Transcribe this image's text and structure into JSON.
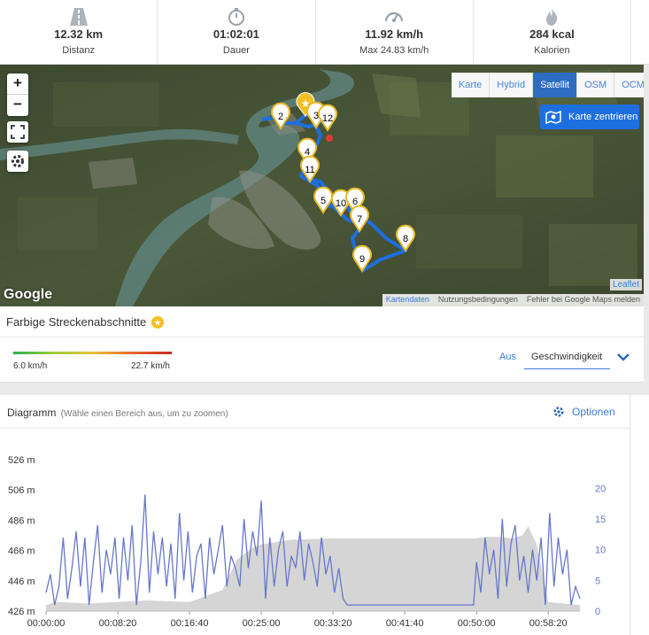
{
  "stats": [
    {
      "icon": "road-icon",
      "value": "12.32 km",
      "label": "Distanz"
    },
    {
      "icon": "stopwatch-icon",
      "value": "01:02:01",
      "label": "Dauer"
    },
    {
      "icon": "speedometer-icon",
      "value": "11.92 km/h",
      "label": "Max 24.83 km/h"
    },
    {
      "icon": "flame-icon",
      "value": "284 kcal",
      "label": "Kalorien"
    }
  ],
  "map": {
    "zoom_in": "+",
    "zoom_out": "−",
    "layers": [
      "Karte",
      "Hybrid",
      "Satellit",
      "OSM",
      "OCM"
    ],
    "active_layer": "Satellit",
    "center_button": "Karte zentrieren",
    "google_logo": "Google",
    "leaflet": "Leaflet",
    "attribution": [
      "Kartendaten",
      "Nutzungsbedingungen",
      "Fehler bei Google Maps melden"
    ],
    "markers": [
      "2",
      "3",
      "12",
      "4",
      "11",
      "5",
      "10",
      "6",
      "7",
      "8",
      "9"
    ]
  },
  "segments": {
    "title": "Farbige Streckenabschnitte",
    "min_label": "6.0 km/h",
    "max_label": "22.7 km/h",
    "off_label": "Aus",
    "selected": "Geschwindigkeit"
  },
  "diagram": {
    "title": "Diagramm",
    "subtitle": "(Wähle einen Bereich aus, um zu zoomen)",
    "options_label": "Optionen"
  },
  "chart_data": {
    "type": "area",
    "x_ticks": [
      "00:00:00",
      "00:08:20",
      "00:16:40",
      "00:25:00",
      "00:33:20",
      "00:41:40",
      "00:50:00",
      "00:58:20"
    ],
    "y_left_ticks": [
      "426 m",
      "446 m",
      "466 m",
      "486 m",
      "506 m",
      "526 m"
    ],
    "y_right_ticks": [
      "0",
      "5",
      "10",
      "15",
      "20"
    ],
    "ylim_left": [
      426,
      526
    ],
    "ylim_right": [
      0,
      20
    ],
    "xlim_seconds": [
      0,
      3721
    ],
    "series": [
      {
        "type": "area",
        "color": "#d5d5d5",
        "x": [
          0,
          60,
          300,
          700,
          1000,
          1230,
          1330,
          1440,
          1500,
          1700,
          2000,
          2400,
          2800,
          2990,
          3070,
          3150,
          3250,
          3320,
          3360,
          3420,
          3500,
          3721
        ],
        "values": [
          430,
          432,
          431,
          433,
          432,
          440,
          460,
          468,
          470,
          473,
          474,
          474,
          474,
          474,
          475,
          475,
          474,
          476,
          482,
          470,
          432,
          430
        ]
      },
      {
        "type": "line",
        "color": "#6677cc",
        "x": [
          0,
          30,
          60,
          90,
          120,
          150,
          180,
          210,
          240,
          270,
          300,
          330,
          360,
          390,
          420,
          450,
          480,
          510,
          540,
          570,
          600,
          630,
          660,
          690,
          720,
          750,
          780,
          810,
          840,
          870,
          900,
          930,
          960,
          990,
          1020,
          1050,
          1080,
          1110,
          1140,
          1170,
          1200,
          1230,
          1260,
          1290,
          1320,
          1350,
          1380,
          1410,
          1440,
          1470,
          1500,
          1530,
          1560,
          1590,
          1620,
          1650,
          1680,
          1710,
          1740,
          1770,
          1800,
          1830,
          1860,
          1890,
          1920,
          1950,
          1980,
          2010,
          2040,
          2070,
          2100,
          2400,
          2700,
          2900,
          2980,
          3000,
          3030,
          3060,
          3090,
          3120,
          3150,
          3180,
          3210,
          3240,
          3270,
          3300,
          3330,
          3360,
          3390,
          3420,
          3450,
          3480,
          3510,
          3540,
          3570,
          3600,
          3630,
          3660,
          3690,
          3721
        ],
        "values": [
          3,
          6,
          1,
          4,
          12,
          2,
          7,
          13,
          4,
          12,
          1,
          8,
          14,
          3,
          10,
          6,
          12,
          2,
          12,
          5,
          14,
          1,
          8,
          19,
          3,
          13,
          6,
          12,
          4,
          11,
          2,
          16,
          5,
          13,
          3,
          9,
          11,
          2,
          12,
          6,
          10,
          14,
          4,
          9,
          7,
          4,
          15,
          7,
          13,
          9,
          18,
          2,
          12,
          4,
          10,
          13,
          4,
          9,
          7,
          13,
          5,
          11,
          8,
          4,
          12,
          6,
          9,
          3,
          7,
          2,
          1,
          1,
          1,
          1,
          1,
          8,
          3,
          12,
          6,
          10,
          2,
          15,
          4,
          11,
          14,
          5,
          9,
          3,
          10,
          5,
          12,
          1,
          16,
          4,
          12,
          6,
          10,
          1,
          4,
          2
        ]
      }
    ]
  }
}
